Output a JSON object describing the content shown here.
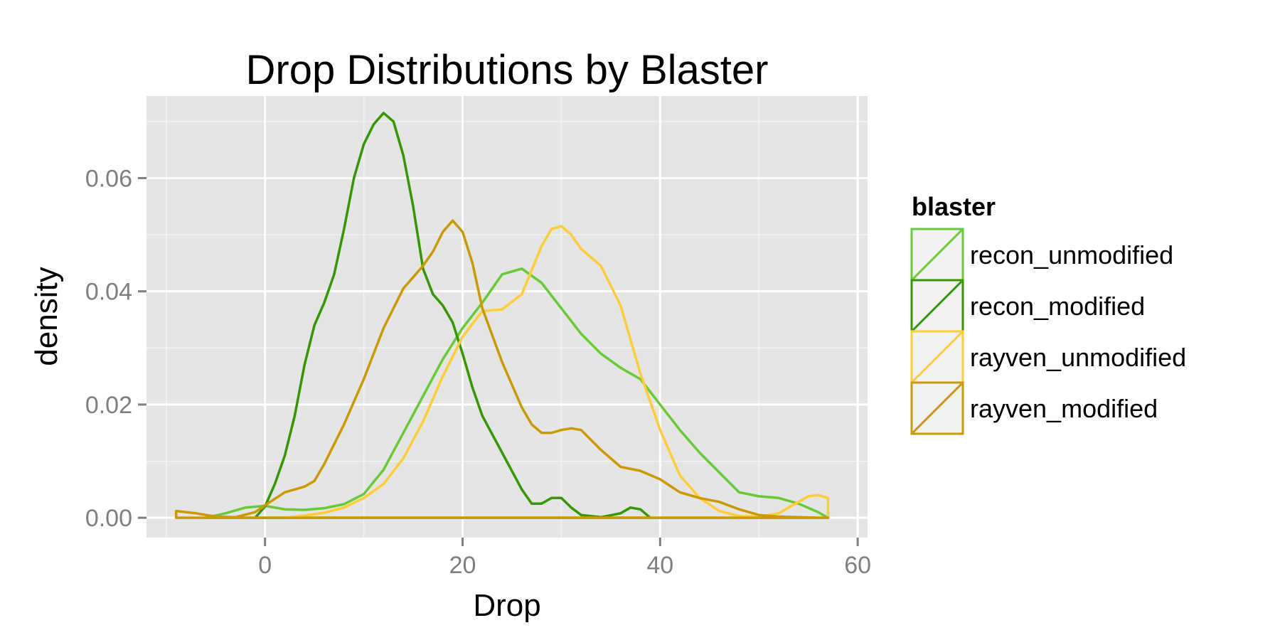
{
  "chart_data": {
    "type": "area",
    "title": "Drop Distributions by Blaster",
    "xlabel": "Drop",
    "ylabel": "density",
    "xlim": [
      -12,
      61
    ],
    "ylim": [
      -0.0035,
      0.0745
    ],
    "x_ticks": [
      0,
      20,
      40,
      60
    ],
    "x_tick_labels": [
      "0",
      "20",
      "40",
      "60"
    ],
    "y_ticks": [
      0.0,
      0.02,
      0.04,
      0.06
    ],
    "y_tick_labels": [
      "0.00",
      "0.02",
      "0.04",
      "0.06"
    ],
    "grid": true,
    "legend": {
      "title": "blaster",
      "position": "right"
    },
    "series": [
      {
        "name": "recon_unmodified",
        "color": "#66cc33",
        "x_range": [
          -6,
          57
        ],
        "points": [
          [
            -6,
            0.0
          ],
          [
            -4,
            0.0008
          ],
          [
            -2,
            0.0018
          ],
          [
            0,
            0.0021
          ],
          [
            2,
            0.0015
          ],
          [
            4,
            0.0014
          ],
          [
            6,
            0.0017
          ],
          [
            8,
            0.0024
          ],
          [
            10,
            0.0042
          ],
          [
            12,
            0.0085
          ],
          [
            14,
            0.015
          ],
          [
            16,
            0.0215
          ],
          [
            18,
            0.028
          ],
          [
            20,
            0.0335
          ],
          [
            22,
            0.038
          ],
          [
            24,
            0.043
          ],
          [
            26,
            0.044
          ],
          [
            28,
            0.0415
          ],
          [
            30,
            0.037
          ],
          [
            32,
            0.0325
          ],
          [
            34,
            0.029
          ],
          [
            36,
            0.0265
          ],
          [
            38,
            0.0245
          ],
          [
            40,
            0.02
          ],
          [
            42,
            0.0155
          ],
          [
            44,
            0.0115
          ],
          [
            46,
            0.008
          ],
          [
            48,
            0.0045
          ],
          [
            50,
            0.0038
          ],
          [
            52,
            0.0035
          ],
          [
            54,
            0.0025
          ],
          [
            56,
            0.001
          ],
          [
            57,
            0.0
          ]
        ]
      },
      {
        "name": "recon_modified",
        "color": "#339900",
        "x_range": [
          -1,
          39
        ],
        "points": [
          [
            -1,
            0.0
          ],
          [
            0,
            0.002
          ],
          [
            1,
            0.006
          ],
          [
            2,
            0.011
          ],
          [
            3,
            0.018
          ],
          [
            4,
            0.027
          ],
          [
            5,
            0.034
          ],
          [
            6,
            0.038
          ],
          [
            7,
            0.043
          ],
          [
            8,
            0.051
          ],
          [
            9,
            0.06
          ],
          [
            10,
            0.066
          ],
          [
            11,
            0.0695
          ],
          [
            12,
            0.0715
          ],
          [
            13,
            0.07
          ],
          [
            14,
            0.064
          ],
          [
            15,
            0.055
          ],
          [
            16,
            0.044
          ],
          [
            17,
            0.0395
          ],
          [
            18,
            0.0375
          ],
          [
            19,
            0.0345
          ],
          [
            20,
            0.029
          ],
          [
            21,
            0.023
          ],
          [
            22,
            0.018
          ],
          [
            24,
            0.0115
          ],
          [
            26,
            0.005
          ],
          [
            27,
            0.0025
          ],
          [
            28,
            0.0025
          ],
          [
            29,
            0.0035
          ],
          [
            30,
            0.0035
          ],
          [
            31,
            0.0018
          ],
          [
            32,
            0.0005
          ],
          [
            34,
            0.0001
          ],
          [
            36,
            0.0008
          ],
          [
            37,
            0.0018
          ],
          [
            38,
            0.0015
          ],
          [
            39,
            0.0
          ]
        ]
      },
      {
        "name": "rayven_unmodified",
        "color": "#ffcc33",
        "x_range": [
          2,
          57
        ],
        "points": [
          [
            2,
            0.0
          ],
          [
            4,
            0.0004
          ],
          [
            6,
            0.0009
          ],
          [
            8,
            0.0018
          ],
          [
            10,
            0.0035
          ],
          [
            12,
            0.006
          ],
          [
            14,
            0.0105
          ],
          [
            16,
            0.017
          ],
          [
            18,
            0.025
          ],
          [
            20,
            0.032
          ],
          [
            22,
            0.0365
          ],
          [
            24,
            0.0368
          ],
          [
            26,
            0.0395
          ],
          [
            28,
            0.048
          ],
          [
            29,
            0.051
          ],
          [
            30,
            0.0515
          ],
          [
            31,
            0.05
          ],
          [
            32,
            0.0475
          ],
          [
            34,
            0.0445
          ],
          [
            36,
            0.0375
          ],
          [
            38,
            0.0255
          ],
          [
            40,
            0.0155
          ],
          [
            42,
            0.0075
          ],
          [
            44,
            0.0035
          ],
          [
            46,
            0.0012
          ],
          [
            48,
            0.0003
          ],
          [
            50,
            0.0002
          ],
          [
            52,
            0.0008
          ],
          [
            54,
            0.0028
          ],
          [
            55,
            0.0038
          ],
          [
            56,
            0.004
          ],
          [
            57,
            0.0035
          ],
          [
            57,
            0.0
          ]
        ]
      },
      {
        "name": "rayven_modified",
        "color": "#cc9900",
        "x_range": [
          -9,
          57
        ],
        "points": [
          [
            -9,
            0.0012
          ],
          [
            -7,
            0.0008
          ],
          [
            -5,
            0.0002
          ],
          [
            -3,
            0.0001
          ],
          [
            -1,
            0.001
          ],
          [
            0,
            0.0022
          ],
          [
            2,
            0.0045
          ],
          [
            4,
            0.0055
          ],
          [
            5,
            0.0065
          ],
          [
            6,
            0.0095
          ],
          [
            8,
            0.0165
          ],
          [
            10,
            0.0245
          ],
          [
            12,
            0.0335
          ],
          [
            14,
            0.0405
          ],
          [
            16,
            0.0445
          ],
          [
            17,
            0.047
          ],
          [
            18,
            0.0505
          ],
          [
            19,
            0.0525
          ],
          [
            20,
            0.0505
          ],
          [
            21,
            0.045
          ],
          [
            22,
            0.037
          ],
          [
            24,
            0.0275
          ],
          [
            26,
            0.0195
          ],
          [
            27,
            0.0165
          ],
          [
            28,
            0.015
          ],
          [
            29,
            0.015
          ],
          [
            30,
            0.0155
          ],
          [
            31,
            0.0158
          ],
          [
            32,
            0.0155
          ],
          [
            34,
            0.012
          ],
          [
            36,
            0.009
          ],
          [
            38,
            0.0083
          ],
          [
            40,
            0.0068
          ],
          [
            42,
            0.0045
          ],
          [
            44,
            0.0035
          ],
          [
            46,
            0.0028
          ],
          [
            48,
            0.0015
          ],
          [
            50,
            0.0005
          ],
          [
            52,
            0.0002
          ],
          [
            54,
            0.0001
          ],
          [
            56,
            0.0
          ],
          [
            57,
            0.0
          ]
        ]
      }
    ]
  }
}
